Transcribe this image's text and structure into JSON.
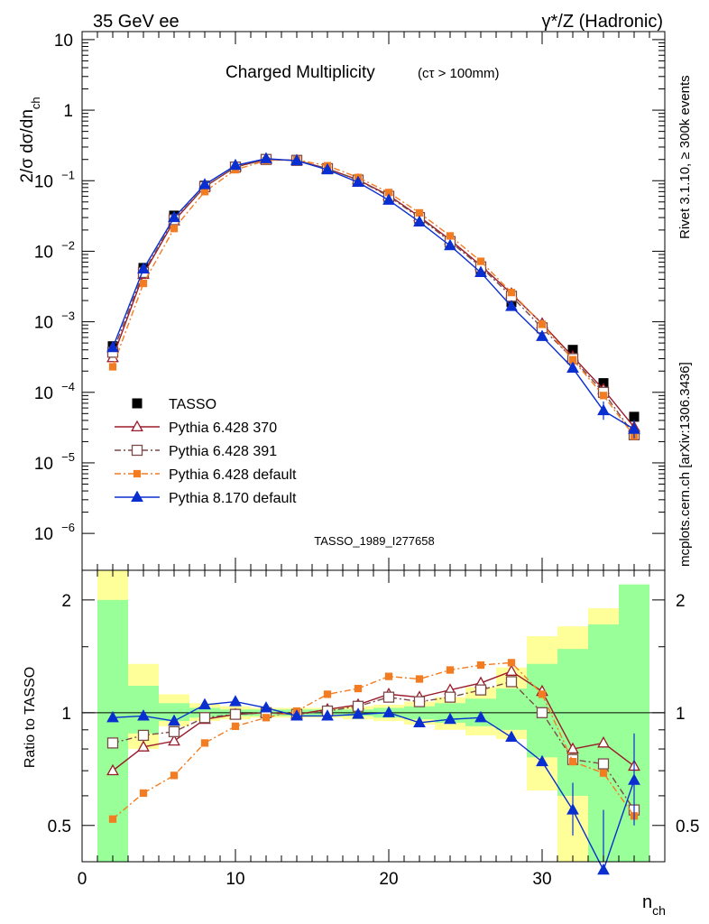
{
  "header": {
    "left": "35 GeV ee",
    "right": "γ*/Z (Hadronic)",
    "side_top": "Rivet 3.1.10, ≥ 300k events",
    "side_bottom": "mcplots.cern.ch [arXiv:1306.3436]"
  },
  "chart_data": [
    {
      "type": "scatter",
      "title": "Charged Multiplicity",
      "subtitle": "(cτ > 100mm)",
      "analysis_label": "TASSO_1989_I277658",
      "ylabel": "2/σ dσ/dn_ch",
      "y_scale": "log",
      "ylim": [
        3e-07,
        13
      ],
      "xlim": [
        0,
        38
      ],
      "grid": false,
      "legend_position": "lower-left",
      "y_ticks": [
        {
          "value": 10,
          "label": "10"
        },
        {
          "value": 1,
          "label": "1"
        },
        {
          "value": 0.1,
          "label": "10",
          "sup": "−1"
        },
        {
          "value": 0.01,
          "label": "10",
          "sup": "−2"
        },
        {
          "value": 0.001,
          "label": "10",
          "sup": "−3"
        },
        {
          "value": 0.0001,
          "label": "10",
          "sup": "−4"
        },
        {
          "value": 1e-05,
          "label": "10",
          "sup": "−5"
        },
        {
          "value": 1e-06,
          "label": "10",
          "sup": "−6"
        }
      ],
      "x": [
        2,
        4,
        6,
        8,
        10,
        12,
        14,
        16,
        18,
        20,
        22,
        24,
        26,
        28,
        30,
        32,
        34,
        36
      ],
      "series": [
        {
          "name": "TASSO",
          "color": "#000000",
          "marker": "square-filled",
          "line": "none",
          "values": [
            0.00045,
            0.0058,
            0.032,
            0.085,
            0.158,
            0.2,
            0.196,
            0.146,
            0.098,
            0.055,
            0.028,
            0.0125,
            0.0052,
            0.0019,
            0.00082,
            0.0004,
            0.000135,
            4.5e-05
          ]
        },
        {
          "name": "Pythia 6.428 370",
          "color": "#9a1b2a",
          "marker": "triangle-open",
          "line": "solid",
          "values": [
            0.00031,
            0.0047,
            0.027,
            0.082,
            0.157,
            0.2,
            0.194,
            0.148,
            0.103,
            0.062,
            0.031,
            0.0145,
            0.0063,
            0.0025,
            0.00094,
            0.00032,
            0.00011,
            3.2e-05
          ]
        },
        {
          "name": "Pythia 6.428 391",
          "color": "#7a4a4a",
          "marker": "square-open",
          "line": "dashdot",
          "values": [
            0.00037,
            0.005,
            0.028,
            0.082,
            0.156,
            0.2,
            0.194,
            0.148,
            0.102,
            0.06,
            0.03,
            0.0137,
            0.006,
            0.0023,
            0.00082,
            0.0003,
            0.0001,
            2.5e-05
          ]
        },
        {
          "name": "Pythia 6.428 default",
          "color": "#f47c20",
          "marker": "square-small",
          "line": "dashdot",
          "values": [
            0.00023,
            0.0035,
            0.021,
            0.07,
            0.143,
            0.193,
            0.198,
            0.163,
            0.111,
            0.068,
            0.035,
            0.0165,
            0.0072,
            0.0026,
            0.00092,
            0.00029,
            9e-05,
            2.4e-05
          ]
        },
        {
          "name": "Pythia 8.170 default",
          "color": "#0a2fd0",
          "marker": "triangle-filled",
          "line": "solid",
          "values": [
            0.00043,
            0.0056,
            0.03,
            0.088,
            0.165,
            0.205,
            0.192,
            0.143,
            0.095,
            0.053,
            0.026,
            0.012,
            0.005,
            0.00165,
            0.00062,
            0.00022,
            5.5e-05,
            3e-05
          ]
        }
      ]
    },
    {
      "type": "line",
      "ylabel": "Ratio to TASSO",
      "xlabel": "n_ch",
      "y_scale": "log",
      "ylim": [
        0.4,
        2.4
      ],
      "xlim": [
        0,
        38
      ],
      "grid": false,
      "reference_line": 1,
      "y_ticks": [
        {
          "value": 2,
          "label": "2"
        },
        {
          "value": 1,
          "label": "1"
        },
        {
          "value": 0.5,
          "label": "0.5"
        }
      ],
      "x_ticks": [
        {
          "value": 0,
          "label": "0"
        },
        {
          "value": 10,
          "label": "10"
        },
        {
          "value": 20,
          "label": "20"
        },
        {
          "value": 30,
          "label": "30"
        }
      ],
      "x": [
        2,
        4,
        6,
        8,
        10,
        12,
        14,
        16,
        18,
        20,
        22,
        24,
        26,
        28,
        30,
        32,
        34,
        36
      ],
      "bands": {
        "edges": [
          1,
          3,
          5,
          7,
          9,
          11,
          13,
          15,
          17,
          19,
          21,
          23,
          25,
          27,
          29,
          31,
          33,
          35,
          37
        ],
        "colors": {
          "outer": "#ffff99",
          "inner": "#99ff99"
        },
        "outer_low": [
          0.4,
          0.8,
          0.92,
          0.95,
          0.96,
          0.97,
          0.97,
          0.97,
          0.96,
          0.95,
          0.93,
          0.9,
          0.87,
          0.85,
          0.62,
          0.4,
          0.4,
          0.4
        ],
        "outer_high": [
          2.4,
          1.35,
          1.12,
          1.06,
          1.04,
          1.03,
          1.03,
          1.03,
          1.04,
          1.05,
          1.07,
          1.1,
          1.17,
          1.32,
          1.6,
          1.7,
          1.9,
          2.15
        ],
        "inner_low": [
          0.4,
          0.88,
          0.95,
          0.97,
          0.98,
          0.98,
          0.98,
          0.98,
          0.98,
          0.97,
          0.96,
          0.94,
          0.92,
          0.9,
          0.76,
          0.6,
          0.4,
          0.4
        ],
        "inner_high": [
          2.0,
          1.18,
          1.06,
          1.03,
          1.02,
          1.02,
          1.02,
          1.02,
          1.02,
          1.03,
          1.04,
          1.06,
          1.09,
          1.16,
          1.35,
          1.48,
          1.72,
          2.2
        ]
      },
      "series": [
        {
          "name": "Pythia 6.428 370",
          "color": "#9a1b2a",
          "marker": "triangle-open",
          "line": "solid",
          "values": [
            0.7,
            0.81,
            0.84,
            0.96,
            0.99,
            1.0,
            0.99,
            1.02,
            1.05,
            1.12,
            1.1,
            1.15,
            1.2,
            1.29,
            1.14,
            0.8,
            0.83,
            0.72
          ]
        },
        {
          "name": "Pythia 6.428 391",
          "color": "#7a4a4a",
          "marker": "square-open",
          "line": "dashdot",
          "values": [
            0.83,
            0.87,
            0.89,
            0.97,
            0.99,
            1.0,
            0.99,
            1.01,
            1.04,
            1.1,
            1.07,
            1.1,
            1.15,
            1.21,
            1.0,
            0.75,
            0.73,
            0.55
          ]
        },
        {
          "name": "Pythia 6.428 default",
          "color": "#f47c20",
          "marker": "square-small",
          "line": "dashdot",
          "values": [
            0.52,
            0.61,
            0.68,
            0.83,
            0.92,
            0.97,
            1.01,
            1.12,
            1.16,
            1.25,
            1.23,
            1.3,
            1.34,
            1.36,
            1.12,
            0.74,
            0.69,
            0.53
          ]
        },
        {
          "name": "Pythia 8.170 default",
          "color": "#0a2fd0",
          "marker": "triangle-filled",
          "line": "solid",
          "values": [
            0.97,
            0.98,
            0.95,
            1.05,
            1.07,
            1.03,
            0.98,
            0.98,
            0.99,
            1.0,
            0.94,
            0.96,
            0.97,
            0.86,
            0.74,
            0.55,
            0.38,
            0.66
          ]
        }
      ]
    }
  ]
}
